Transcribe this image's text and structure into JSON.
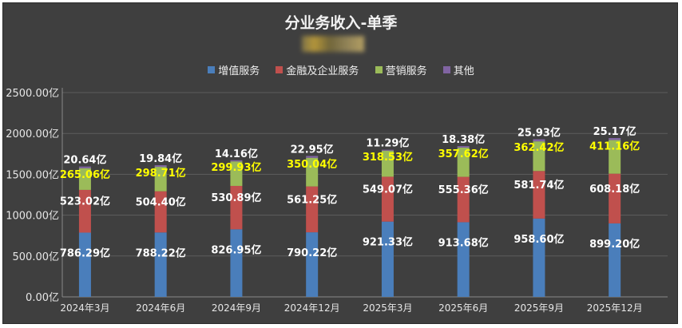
{
  "chart_data": {
    "type": "bar",
    "stacked": true,
    "title": "分业务收入-单季",
    "categories": [
      "2024年3月",
      "2024年6月",
      "2024年9月",
      "2024年12月",
      "2025年3月",
      "2025年6月",
      "2025年9月",
      "2025年12月"
    ],
    "series": [
      {
        "name": "增值服务",
        "color": "#4a7ebb",
        "values": [
          786.29,
          788.22,
          826.95,
          790.22,
          921.33,
          913.68,
          958.6,
          899.2
        ],
        "labels": [
          "786.29亿",
          "788.22亿",
          "826.95亿",
          "790.22亿",
          "921.33亿",
          "913.68亿",
          "958.60亿",
          "899.20亿"
        ]
      },
      {
        "name": "金融及企业服务",
        "color": "#c0504d",
        "values": [
          523.02,
          504.4,
          530.89,
          561.25,
          549.07,
          555.36,
          581.74,
          608.18
        ],
        "labels": [
          "523.02亿",
          "504.40亿",
          "530.89亿",
          "561.25亿",
          "549.07亿",
          "555.36亿",
          "581.74亿",
          "608.18亿"
        ]
      },
      {
        "name": "营销服务",
        "color": "#9bbb59",
        "values": [
          265.06,
          298.71,
          299.93,
          350.04,
          318.53,
          357.62,
          362.42,
          411.16
        ],
        "labels": [
          "265.06亿",
          "298.71亿",
          "299.93亿",
          "350.04亿",
          "318.53亿",
          "357.62亿",
          "362.42亿",
          "411.16亿"
        ]
      },
      {
        "name": "其他",
        "color": "#8064a2",
        "values": [
          20.64,
          19.84,
          14.16,
          22.95,
          11.29,
          18.38,
          25.93,
          25.17
        ],
        "labels": [
          "20.64亿",
          "19.84亿",
          "14.16亿",
          "22.95亿",
          "11.29亿",
          "18.38亿",
          "25.93亿",
          "25.17亿"
        ]
      }
    ],
    "yticks": [
      "0.00亿",
      "500.00亿",
      "1000.00亿",
      "1500.00亿",
      "2000.00亿",
      "2500.00亿"
    ],
    "ylim": [
      0,
      2500
    ],
    "grid": true,
    "legend_position": "top"
  }
}
